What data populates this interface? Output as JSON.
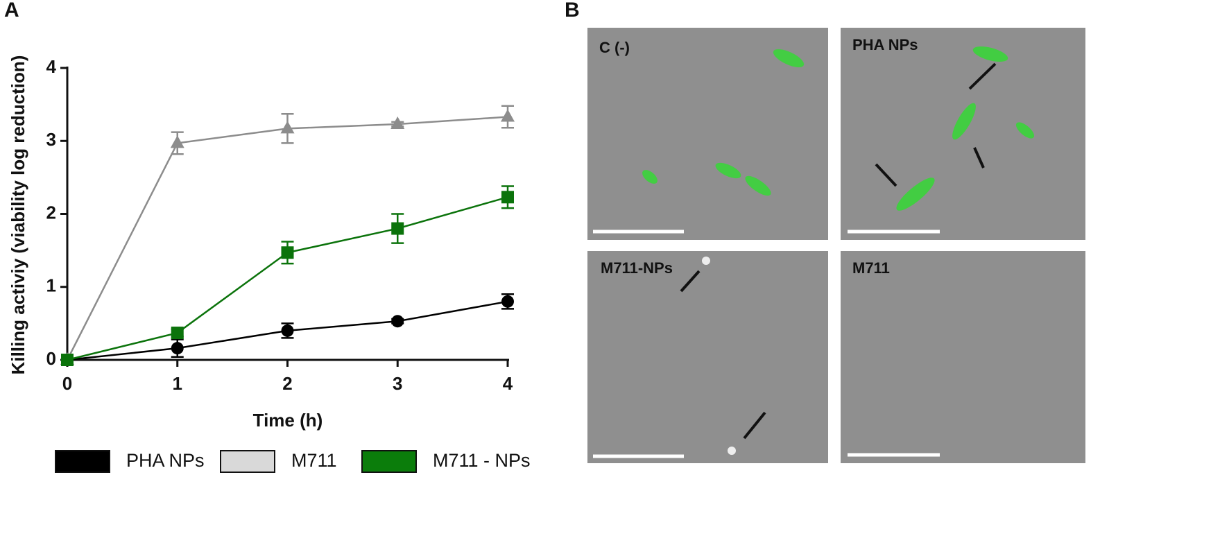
{
  "chart_data": {
    "type": "line",
    "panel_label": "A",
    "x_label": "Time (h)",
    "y_label": "Killing activiy (viability log reduction)",
    "x": [
      0,
      1,
      2,
      3,
      4
    ],
    "xlim": [
      0,
      4
    ],
    "xticks": [
      0,
      1,
      2,
      3,
      4
    ],
    "ylim": [
      0,
      4
    ],
    "yticks": [
      0,
      1,
      2,
      3,
      4
    ],
    "series": [
      {
        "name": "PHA NPs",
        "color": "#000000",
        "legend_color": "#000000",
        "marker": "circle",
        "values": [
          0,
          0.16,
          0.4,
          0.53,
          0.8
        ],
        "errors": [
          0,
          0.12,
          0.1,
          0.03,
          0.1
        ]
      },
      {
        "name": "M711",
        "color": "#8c8c8c",
        "legend_color": "#d9d9d9",
        "marker": "triangle",
        "values": [
          0,
          2.97,
          3.17,
          3.23,
          3.33
        ],
        "errors": [
          0,
          0.15,
          0.2,
          0.03,
          0.15
        ]
      },
      {
        "name": "M711 - NPs",
        "color": "#0b730b",
        "legend_color": "#0b7d0b",
        "marker": "square",
        "values": [
          0,
          0.37,
          1.47,
          1.8,
          2.23
        ],
        "errors": [
          0,
          0.05,
          0.15,
          0.2,
          0.15
        ]
      }
    ]
  },
  "images": {
    "panel_label": "B",
    "labels": [
      "C (-)",
      "PHA NPs",
      "M711-NPs",
      "M711"
    ]
  }
}
